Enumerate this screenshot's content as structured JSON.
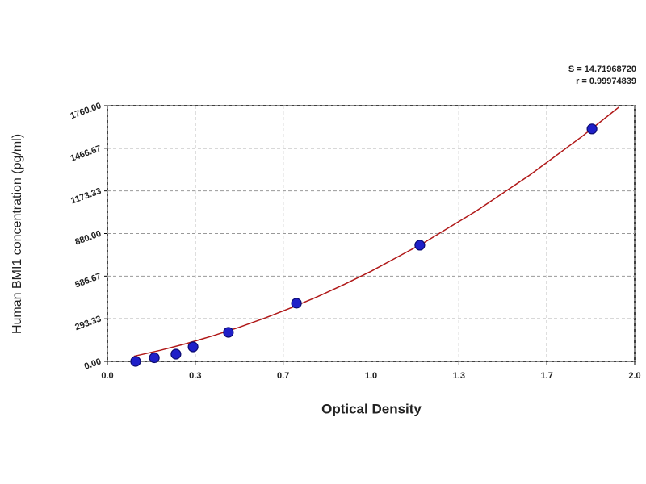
{
  "chart_data": {
    "type": "scatter",
    "annotations": [
      "S = 14.71968720",
      "r = 0.99974839"
    ],
    "x_label": "Optical Density",
    "y_label": "Human BMI1 concentration (pg/ml)",
    "series": [
      {
        "type": "scatter",
        "color": "#1f1fc8",
        "x": [
          0.107,
          0.178,
          0.26,
          0.325,
          0.459,
          0.717,
          1.185,
          1.838
        ],
        "values": [
          0,
          25,
          50,
          100,
          200,
          400,
          800,
          1600
        ]
      },
      {
        "type": "line",
        "color": "#b01818",
        "x": [
          0.1,
          0.2,
          0.3,
          0.4,
          0.5,
          0.6,
          0.7,
          0.8,
          0.9,
          1.0,
          1.2,
          1.4,
          1.6,
          1.8,
          1.94
        ],
        "values": [
          35,
          76,
          123,
          176,
          235,
          300,
          371,
          448,
          531,
          620,
          816,
          1036,
          1280,
          1548,
          1750
        ]
      }
    ],
    "xlim": [
      0,
      2
    ],
    "ylim": [
      0,
      1760
    ],
    "xticks": [
      {
        "value": 0,
        "label": "0.0"
      },
      {
        "value": 0.3333,
        "label": "0.3"
      },
      {
        "value": 0.6667,
        "label": "0.7"
      },
      {
        "value": 1,
        "label": "1.0"
      },
      {
        "value": 1.3333,
        "label": "1.3"
      },
      {
        "value": 1.6667,
        "label": "1.7"
      },
      {
        "value": 2,
        "label": "2.0"
      }
    ],
    "yticks": [
      {
        "value": 0,
        "label": "0.00"
      },
      {
        "value": 293.33,
        "label": "293.33"
      },
      {
        "value": 586.67,
        "label": "586.67"
      },
      {
        "value": 880,
        "label": "880.00"
      },
      {
        "value": 1173.33,
        "label": "1173.33"
      },
      {
        "value": 1466.67,
        "label": "1466.67"
      },
      {
        "value": 1760,
        "label": "1760.00"
      }
    ],
    "grid": true
  }
}
